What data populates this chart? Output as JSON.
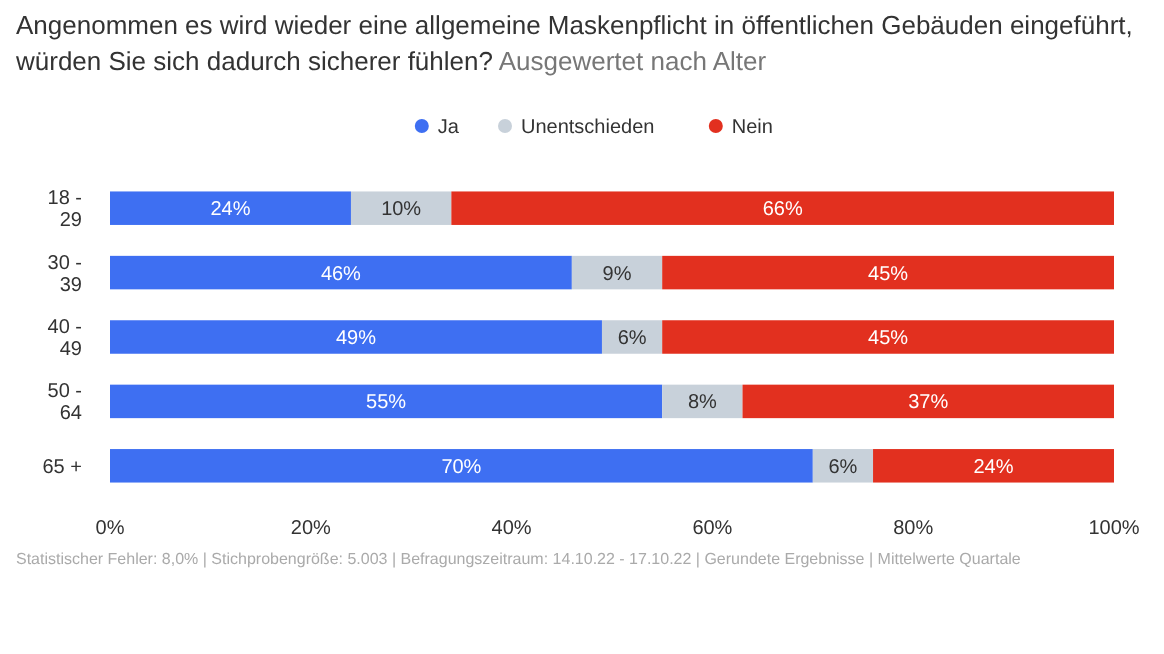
{
  "chart_data": {
    "type": "bar",
    "orientation": "horizontal",
    "stacked": true,
    "title": "Angenommen es wird wieder eine allgemeine Maskenpflicht in öffentlichen Gebäuden eingeführt, würden Sie sich dadurch sicherer fühlen?",
    "subtitle": "Ausgewertet nach Alter",
    "categories": [
      "18 -\n29",
      "30 -\n39",
      "40 -\n49",
      "50 -\n64",
      "65 +"
    ],
    "series": [
      {
        "name": "Ja",
        "color": "#3e6ff2",
        "values": [
          24,
          46,
          49,
          55,
          70
        ],
        "value_labels": [
          "24%",
          "46%",
          "49%",
          "55%",
          "70%"
        ]
      },
      {
        "name": "Unentschieden",
        "color": "#c8d1da",
        "values": [
          10,
          9,
          6,
          8,
          6
        ],
        "value_labels": [
          "10%",
          "9%",
          "6%",
          "8%",
          "6%"
        ]
      },
      {
        "name": "Nein",
        "color": "#e2301f",
        "values": [
          66,
          45,
          45,
          37,
          24
        ],
        "value_labels": [
          "66%",
          "45%",
          "45%",
          "37%",
          "24%"
        ]
      }
    ],
    "xlim": [
      0,
      100
    ],
    "xticks": [
      {
        "value": 0,
        "label": "0%"
      },
      {
        "value": 20,
        "label": "20%"
      },
      {
        "value": 40,
        "label": "40%"
      },
      {
        "value": 60,
        "label": "60%"
      },
      {
        "value": 80,
        "label": "80%"
      },
      {
        "value": 100,
        "label": "100%"
      }
    ],
    "legend": "top",
    "annotations": [
      "Statistischer Fehler: 8,0% | Stichprobengröße: 5.003 | Befragungszeitraum: 14.10.22 - 17.10.22 | Gerundete Ergebnisse | Mittelwerte Quartale"
    ]
  }
}
